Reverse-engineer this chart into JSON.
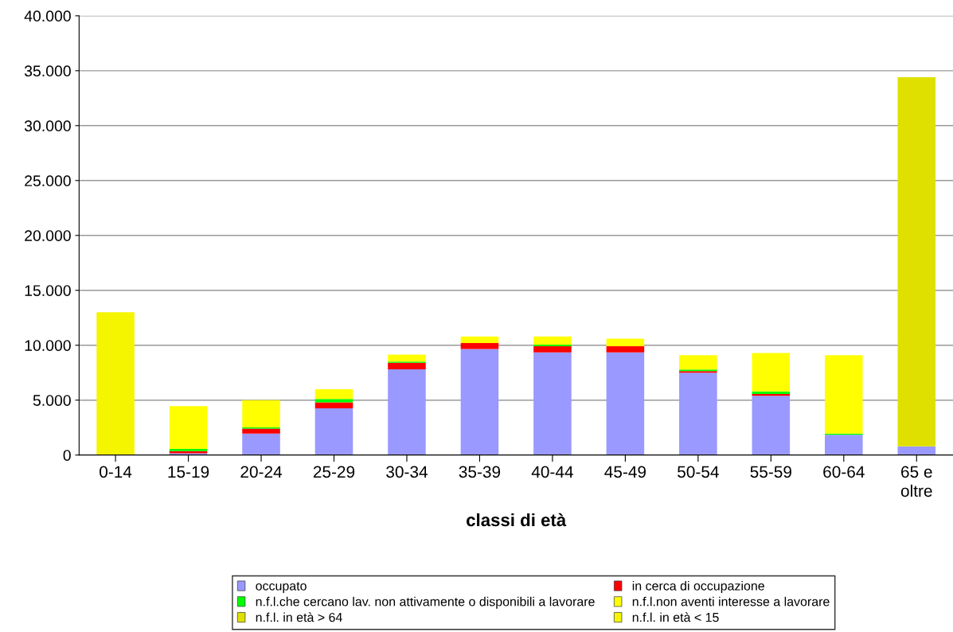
{
  "chart_data": {
    "type": "bar",
    "stacked": true,
    "xlabel": "classi di età",
    "categories": [
      "0-14",
      "15-19",
      "20-24",
      "25-29",
      "30-34",
      "35-39",
      "40-44",
      "45-49",
      "50-54",
      "55-59",
      "60-64",
      "65 e\noltre"
    ],
    "series": [
      {
        "name": "occupato",
        "color": "#9999ff",
        "values": [
          null,
          150,
          1950,
          4250,
          7800,
          9650,
          9350,
          9350,
          7500,
          5400,
          1850,
          800
        ]
      },
      {
        "name": "in cerca di occupazione",
        "color": "#ff0000",
        "values": [
          null,
          200,
          450,
          550,
          600,
          550,
          550,
          550,
          150,
          150,
          null,
          null
        ]
      },
      {
        "name": "n.f.l.che cercano lav. non attivamente o disponibili a lavorare",
        "color": "#00ff00",
        "values": [
          null,
          200,
          120,
          300,
          120,
          null,
          150,
          null,
          130,
          250,
          100,
          null
        ]
      },
      {
        "name": "n.f.l.non aventi interesse a lavorare",
        "color": "#ffff00",
        "values": [
          null,
          3900,
          2480,
          900,
          630,
          600,
          750,
          700,
          1320,
          3500,
          7150,
          null
        ]
      },
      {
        "name": "n.f.l. in età > 64",
        "color": "#e0e000",
        "values": [
          null,
          null,
          null,
          null,
          null,
          null,
          null,
          null,
          null,
          null,
          null,
          33600
        ]
      },
      {
        "name": "n.f.l. in età < 15",
        "color": "#f5f500",
        "values": [
          13000,
          null,
          null,
          null,
          null,
          null,
          null,
          null,
          null,
          null,
          null,
          null
        ]
      }
    ],
    "ylim": [
      0,
      40000
    ],
    "yticks": [
      {
        "value": 0,
        "label": "0"
      },
      {
        "value": 5000,
        "label": "5.000"
      },
      {
        "value": 10000,
        "label": "10.000"
      },
      {
        "value": 15000,
        "label": "15.000"
      },
      {
        "value": 20000,
        "label": "20.000"
      },
      {
        "value": 25000,
        "label": "25.000"
      },
      {
        "value": 30000,
        "label": "30.000"
      },
      {
        "value": 35000,
        "label": "35.000"
      },
      {
        "value": 40000,
        "label": "40.000"
      }
    ],
    "grid": "y",
    "legend": "bottom"
  }
}
